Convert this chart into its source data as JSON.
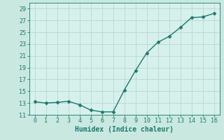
{
  "x": [
    0,
    1,
    2,
    3,
    4,
    5,
    6,
    7,
    8,
    9,
    10,
    11,
    12,
    13,
    14,
    15,
    16
  ],
  "y": [
    13.2,
    13.0,
    13.1,
    13.3,
    12.7,
    11.8,
    11.5,
    11.5,
    15.2,
    18.5,
    21.5,
    23.3,
    24.3,
    25.8,
    27.5,
    27.6,
    28.2
  ],
  "xlabel": "Humidex (Indice chaleur)",
  "ylabel": "",
  "xlim": [
    -0.5,
    16.5
  ],
  "ylim": [
    11,
    30
  ],
  "yticks": [
    11,
    13,
    15,
    17,
    19,
    21,
    23,
    25,
    27,
    29
  ],
  "xticks": [
    0,
    1,
    2,
    3,
    4,
    5,
    6,
    7,
    8,
    9,
    10,
    11,
    12,
    13,
    14,
    15,
    16
  ],
  "line_color": "#1a7a6e",
  "marker_color": "#1a7a6e",
  "bg_color": "#c8e8e0",
  "plot_bg_color": "#d6f0ec",
  "grid_color": "#b8d8d0",
  "tick_color": "#1a7a6e",
  "label_color": "#1a7a6e",
  "marker": "D",
  "markersize": 2.5,
  "linewidth": 1.0,
  "tick_fontsize": 6,
  "xlabel_fontsize": 7
}
